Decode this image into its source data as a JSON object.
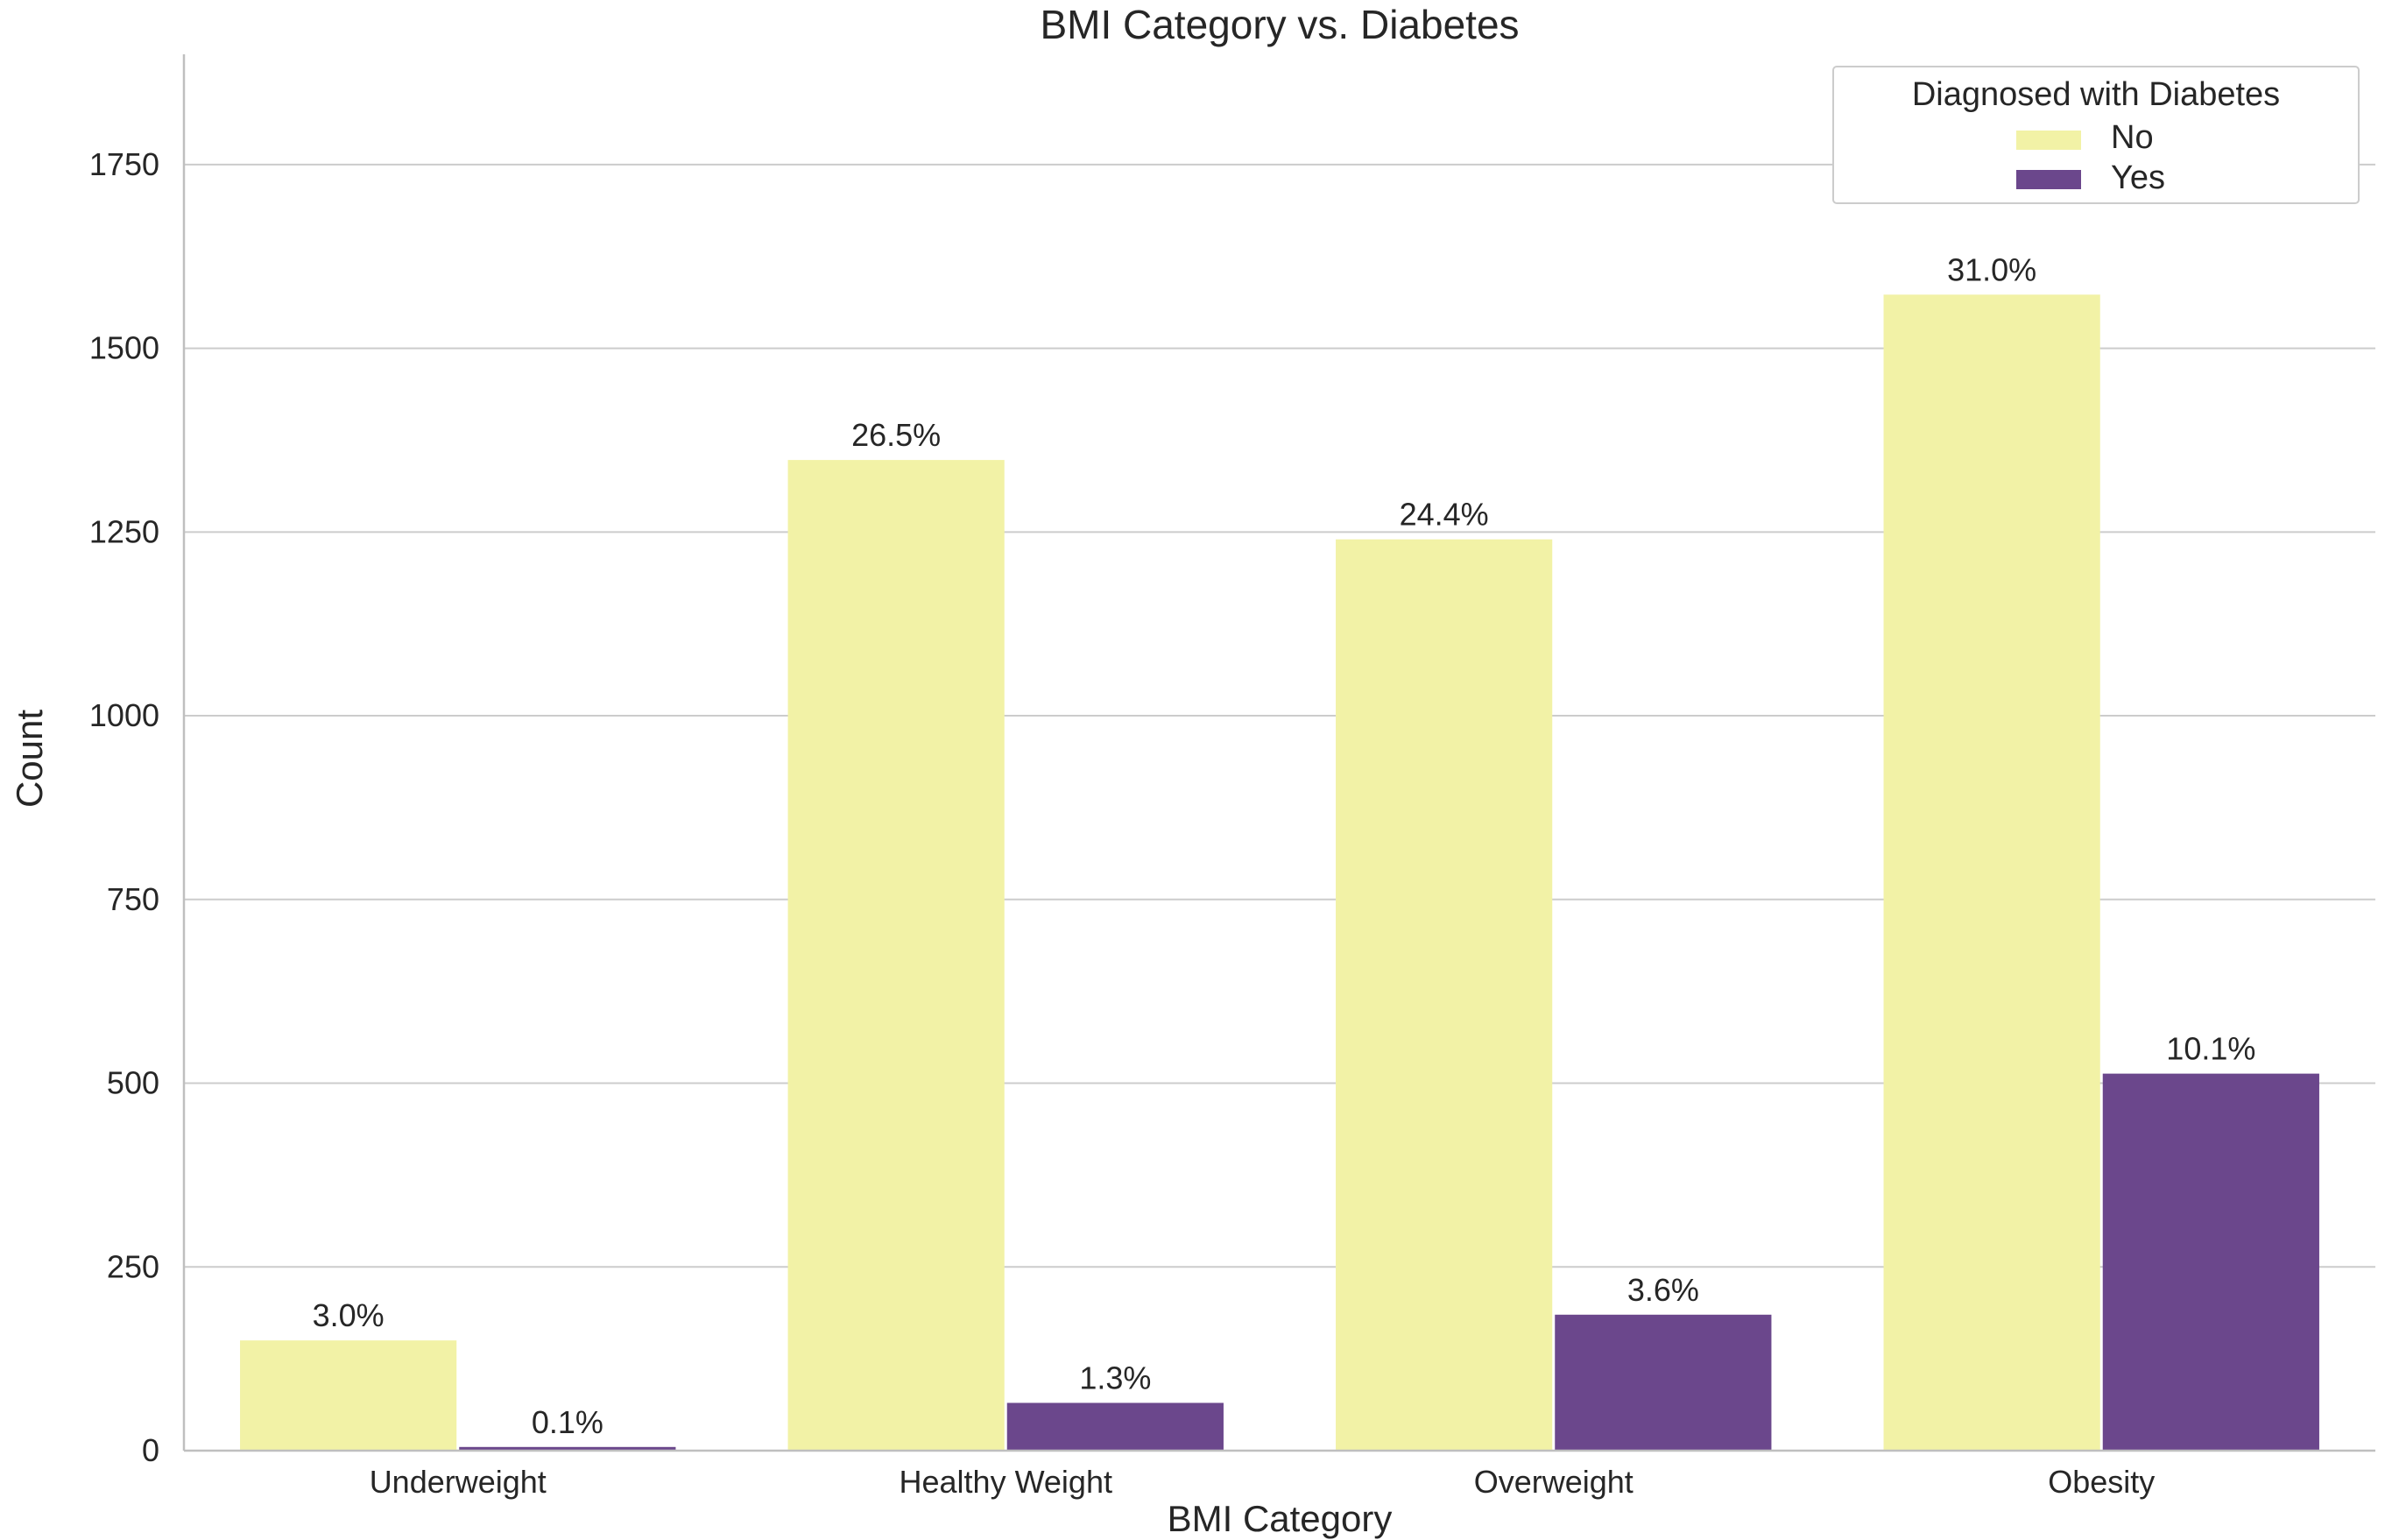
{
  "chart_data": {
    "type": "bar",
    "title": "BMI Category vs. Diabetes",
    "xlabel": "BMI Category",
    "ylabel": "Count",
    "categories": [
      "Underweight",
      "Healthy Weight",
      "Overweight",
      "Obesity"
    ],
    "ylim": [
      0,
      1900
    ],
    "yticks": [
      0,
      250,
      500,
      750,
      1000,
      1250,
      1500,
      1750
    ],
    "grid": true,
    "legend": {
      "title": "Diagnosed with Diabetes",
      "position": "top-right"
    },
    "series": [
      {
        "name": "No",
        "color": "#f2f2a6",
        "values": [
          150,
          1348,
          1240,
          1573
        ],
        "labels": [
          "3.0%",
          "26.5%",
          "24.4%",
          "31.0%"
        ]
      },
      {
        "name": "Yes",
        "color": "#6b478c",
        "values": [
          5,
          65,
          185,
          513
        ],
        "labels": [
          "0.1%",
          "1.3%",
          "3.6%",
          "10.1%"
        ]
      }
    ]
  }
}
